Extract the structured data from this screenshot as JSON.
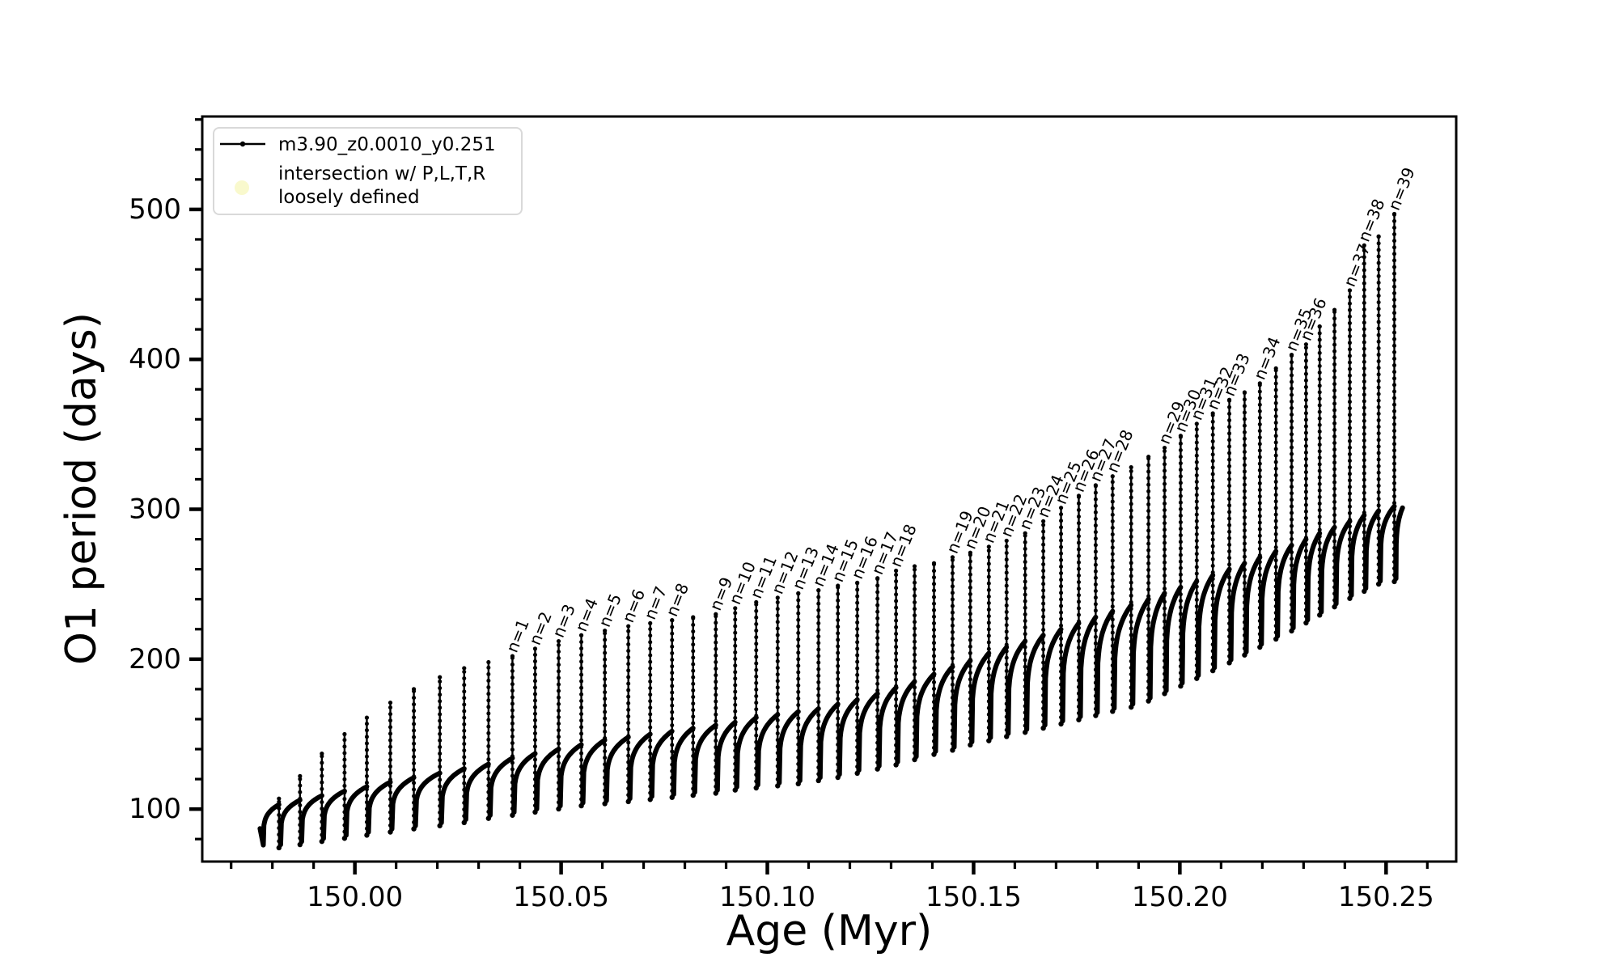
{
  "figure": {
    "background": "#ffffff",
    "line_color": "#000000",
    "legend_border_color": "#d9d9d9",
    "intersection_marker_color": "#f9f9cd"
  },
  "legend": {
    "series_label": "m3.90_z0.0010_y0.251",
    "intersection_label_line1": "intersection w/ P,L,T,R",
    "intersection_label_line2": "loosely defined"
  },
  "axes": {
    "xlabel": "Age (Myr)",
    "ylabel": "O1 period (days)",
    "xlim": [
      149.963,
      150.267
    ],
    "ylim": [
      65,
      562
    ],
    "x_ticks": [
      {
        "value": 150.0,
        "label": "150.00"
      },
      {
        "value": 150.05,
        "label": "150.05"
      },
      {
        "value": 150.1,
        "label": "150.10"
      },
      {
        "value": 150.15,
        "label": "150.15"
      },
      {
        "value": 150.2,
        "label": "150.20"
      },
      {
        "value": 150.25,
        "label": "150.25"
      }
    ],
    "y_ticks": [
      {
        "value": 100,
        "label": "100"
      },
      {
        "value": 200,
        "label": "200"
      },
      {
        "value": 300,
        "label": "300"
      },
      {
        "value": 400,
        "label": "400"
      },
      {
        "value": 500,
        "label": "500"
      }
    ],
    "x_minor_step": 0.01,
    "y_minor_step": 20,
    "grid": false
  },
  "chart_data": {
    "type": "line",
    "title": "",
    "series_name": "m3.90_z0.0010_y0.251",
    "xlabel": "Age (Myr)",
    "ylabel": "O1 period (days)",
    "description": "Sawtooth pulse cycles: each cycle is a rising arc to a plateau (base), a sharp spike to peak, then a drop below the next arc. Labeled spikes mark n=1..39.",
    "series_start": {
      "age": 149.977,
      "value": 87,
      "dip_age": 149.9778,
      "dip_value": 76
    },
    "series_end": {
      "age": 150.254,
      "value": 301
    },
    "cycles": [
      {
        "age": 149.9816,
        "base": 103,
        "peak": 107,
        "label": null
      },
      {
        "age": 149.9867,
        "base": 106,
        "peak": 122,
        "label": null
      },
      {
        "age": 149.992,
        "base": 109,
        "peak": 137,
        "label": null
      },
      {
        "age": 149.9975,
        "base": 112,
        "peak": 150,
        "label": null
      },
      {
        "age": 150.0029,
        "base": 115,
        "peak": 161,
        "label": null
      },
      {
        "age": 150.0086,
        "base": 118,
        "peak": 171,
        "label": null
      },
      {
        "age": 150.0143,
        "base": 121,
        "peak": 180,
        "label": null
      },
      {
        "age": 150.0206,
        "base": 124,
        "peak": 188,
        "label": null
      },
      {
        "age": 150.0265,
        "base": 127,
        "peak": 194,
        "label": null
      },
      {
        "age": 150.0324,
        "base": 130,
        "peak": 198,
        "label": null
      },
      {
        "age": 150.0382,
        "base": 134,
        "peak": 202,
        "label": "n=1"
      },
      {
        "age": 150.0437,
        "base": 137,
        "peak": 207,
        "label": "n=2"
      },
      {
        "age": 150.0494,
        "base": 140,
        "peak": 212,
        "label": "n=3"
      },
      {
        "age": 150.0549,
        "base": 143,
        "peak": 216,
        "label": "n=4"
      },
      {
        "age": 150.0606,
        "base": 146,
        "peak": 219,
        "label": "n=5"
      },
      {
        "age": 150.0663,
        "base": 148,
        "peak": 222,
        "label": "n=6"
      },
      {
        "age": 150.0716,
        "base": 150,
        "peak": 224,
        "label": "n=7"
      },
      {
        "age": 150.0769,
        "base": 152,
        "peak": 226,
        "label": "n=8"
      },
      {
        "age": 150.082,
        "base": 154,
        "peak": 228,
        "label": null
      },
      {
        "age": 150.0875,
        "base": 156,
        "peak": 230,
        "label": "n=9"
      },
      {
        "age": 150.0922,
        "base": 158,
        "peak": 234,
        "label": "n=10"
      },
      {
        "age": 150.0973,
        "base": 161,
        "peak": 238,
        "label": "n=11"
      },
      {
        "age": 150.1025,
        "base": 163,
        "peak": 241,
        "label": "n=12"
      },
      {
        "age": 150.1075,
        "base": 165,
        "peak": 244,
        "label": "n=13"
      },
      {
        "age": 150.1124,
        "base": 167,
        "peak": 246,
        "label": "n=14"
      },
      {
        "age": 150.1171,
        "base": 170,
        "peak": 249,
        "label": "n=15"
      },
      {
        "age": 150.1218,
        "base": 173,
        "peak": 251,
        "label": "n=16"
      },
      {
        "age": 150.1267,
        "base": 177,
        "peak": 254,
        "label": "n=17"
      },
      {
        "age": 150.1312,
        "base": 181,
        "peak": 259,
        "label": "n=18"
      },
      {
        "age": 150.1357,
        "base": 185,
        "peak": 262,
        "label": null
      },
      {
        "age": 150.1404,
        "base": 190,
        "peak": 264,
        "label": null
      },
      {
        "age": 150.1449,
        "base": 195,
        "peak": 268,
        "label": "n=19"
      },
      {
        "age": 150.1492,
        "base": 199,
        "peak": 271,
        "label": "n=20"
      },
      {
        "age": 150.1537,
        "base": 204,
        "peak": 275,
        "label": "n=21"
      },
      {
        "age": 150.158,
        "base": 208,
        "peak": 279,
        "label": "n=22"
      },
      {
        "age": 150.1625,
        "base": 212,
        "peak": 284,
        "label": "n=23"
      },
      {
        "age": 150.1669,
        "base": 216,
        "peak": 292,
        "label": "n=24"
      },
      {
        "age": 150.1712,
        "base": 220,
        "peak": 301,
        "label": "n=25"
      },
      {
        "age": 150.1755,
        "base": 224,
        "peak": 309,
        "label": "n=26"
      },
      {
        "age": 150.1796,
        "base": 228,
        "peak": 316,
        "label": "n=27"
      },
      {
        "age": 150.1837,
        "base": 232,
        "peak": 322,
        "label": "n=28"
      },
      {
        "age": 150.1882,
        "base": 236,
        "peak": 328,
        "label": null
      },
      {
        "age": 150.1924,
        "base": 240,
        "peak": 335,
        "label": null
      },
      {
        "age": 150.1963,
        "base": 244,
        "peak": 341,
        "label": "n=29"
      },
      {
        "age": 150.2002,
        "base": 248,
        "peak": 349,
        "label": "n=30"
      },
      {
        "age": 150.2041,
        "base": 252,
        "peak": 357,
        "label": "n=31"
      },
      {
        "age": 150.208,
        "base": 256,
        "peak": 364,
        "label": "n=32"
      },
      {
        "age": 150.212,
        "base": 260,
        "peak": 373,
        "label": "n=33"
      },
      {
        "age": 150.2157,
        "base": 264,
        "peak": 378,
        "label": null
      },
      {
        "age": 150.2194,
        "base": 268,
        "peak": 384,
        "label": "n=34"
      },
      {
        "age": 150.2233,
        "base": 272,
        "peak": 394,
        "label": null
      },
      {
        "age": 150.2271,
        "base": 276,
        "peak": 403,
        "label": "n=35"
      },
      {
        "age": 150.2306,
        "base": 280,
        "peak": 410,
        "label": "n=36"
      },
      {
        "age": 150.2339,
        "base": 284,
        "peak": 422,
        "label": null
      },
      {
        "age": 150.2375,
        "base": 288,
        "peak": 433,
        "label": null
      },
      {
        "age": 150.2412,
        "base": 292,
        "peak": 446,
        "label": "n=37"
      },
      {
        "age": 150.2447,
        "base": 296,
        "peak": 476,
        "label": "n=38"
      },
      {
        "age": 150.2482,
        "base": 299,
        "peak": 482,
        "label": null
      },
      {
        "age": 150.252,
        "base": 302,
        "peak": 497,
        "label": "n=39"
      }
    ]
  }
}
